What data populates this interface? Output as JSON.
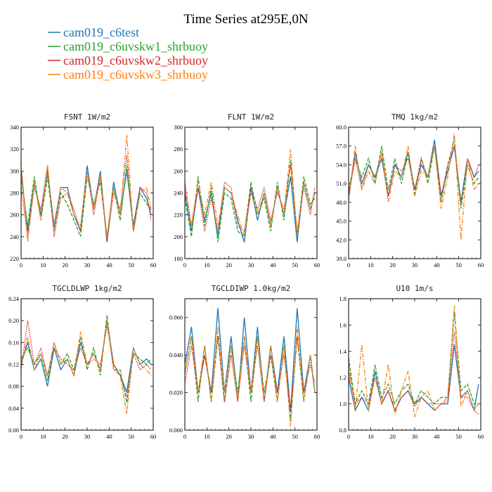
{
  "title": "Time Series at295E,0N",
  "series_styles": [
    {
      "name": "cam019_c6test",
      "color": "#1f77b4",
      "dash": ""
    },
    {
      "name": "cam019_c6uvskw1_shrbuoy",
      "color": "#2ca02c",
      "dash": "5,2"
    },
    {
      "name": "cam019_c6uvskw2_shrbuoy",
      "color": "#d62728",
      "dash": "1.5,1.5"
    },
    {
      "name": "cam019_c6uvskw3_shrbuoy",
      "color": "#ff7f0e",
      "dash": "6,2,1.5,2"
    }
  ],
  "chart_data": [
    {
      "type": "line",
      "title": "FSNT  1W/m2",
      "xlim": [
        0,
        60
      ],
      "ylim": [
        220,
        340
      ],
      "xticks": [
        "0",
        "10",
        "20",
        "30",
        "40",
        "50",
        "60"
      ],
      "yticks": [
        "220",
        "240",
        "260",
        "280",
        "300",
        "320",
        "340"
      ],
      "x": [
        0,
        3,
        6,
        9,
        12,
        15,
        18,
        21,
        24,
        27,
        30,
        33,
        36,
        39,
        42,
        45,
        48,
        51,
        54,
        57,
        59
      ],
      "series": [
        {
          "name": "cam019_c6test",
          "values": [
            300,
            245,
            290,
            260,
            300,
            250,
            285,
            285,
            260,
            245,
            305,
            265,
            300,
            235,
            290,
            260,
            300,
            250,
            285,
            275,
            260
          ]
        },
        {
          "name": "cam019_c6uvskw1_shrbuoy",
          "values": [
            295,
            250,
            295,
            255,
            295,
            245,
            280,
            270,
            255,
            240,
            295,
            270,
            290,
            240,
            285,
            255,
            305,
            245,
            280,
            270,
            265
          ]
        },
        {
          "name": "cam019_c6uvskw2_shrbuoy",
          "values": [
            285,
            240,
            285,
            265,
            305,
            240,
            275,
            280,
            265,
            245,
            300,
            260,
            295,
            235,
            280,
            265,
            315,
            245,
            285,
            280,
            255
          ]
        },
        {
          "name": "cam019_c6uvskw3_shrbuoy",
          "values": [
            308,
            235,
            290,
            255,
            305,
            245,
            285,
            280,
            260,
            250,
            300,
            265,
            295,
            240,
            285,
            260,
            333,
            245,
            280,
            285,
            265
          ]
        }
      ]
    },
    {
      "type": "line",
      "title": "FLNT  1W/m2",
      "xlim": [
        0,
        60
      ],
      "ylim": [
        180,
        300
      ],
      "xticks": [
        "0",
        "10",
        "20",
        "30",
        "40",
        "50",
        "60"
      ],
      "yticks": [
        "180",
        "200",
        "220",
        "240",
        "260",
        "280",
        "300"
      ],
      "x": [
        0,
        3,
        6,
        9,
        12,
        15,
        18,
        21,
        24,
        27,
        30,
        33,
        36,
        39,
        42,
        45,
        48,
        51,
        54,
        57,
        59
      ],
      "series": [
        {
          "name": "cam019_c6test",
          "values": [
            240,
            205,
            245,
            215,
            240,
            200,
            245,
            240,
            215,
            195,
            245,
            215,
            240,
            210,
            245,
            220,
            255,
            195,
            250,
            225,
            240
          ]
        },
        {
          "name": "cam019_c6uvskw1_shrbuoy",
          "values": [
            235,
            200,
            255,
            210,
            245,
            195,
            240,
            235,
            205,
            200,
            250,
            220,
            235,
            205,
            250,
            215,
            270,
            200,
            255,
            230,
            235
          ]
        },
        {
          "name": "cam019_c6uvskw2_shrbuoy",
          "values": [
            250,
            210,
            245,
            205,
            235,
            205,
            250,
            245,
            210,
            205,
            245,
            225,
            245,
            215,
            240,
            225,
            265,
            205,
            245,
            220,
            245
          ]
        },
        {
          "name": "cam019_c6uvskw3_shrbuoy",
          "values": [
            245,
            210,
            250,
            220,
            250,
            210,
            245,
            240,
            220,
            200,
            240,
            220,
            240,
            210,
            245,
            220,
            280,
            200,
            250,
            225,
            240
          ]
        }
      ]
    },
    {
      "type": "line",
      "title": "TMQ  1kg/m2",
      "xlim": [
        0,
        60
      ],
      "ylim": [
        39,
        60
      ],
      "xticks": [
        "0",
        "10",
        "20",
        "30",
        "40",
        "50",
        "60"
      ],
      "yticks": [
        "39.0",
        "42.0",
        "45.0",
        "48.0",
        "51.0",
        "54.0",
        "57.0",
        "60.0"
      ],
      "x": [
        0,
        3,
        6,
        9,
        12,
        15,
        18,
        21,
        24,
        27,
        30,
        33,
        36,
        39,
        42,
        45,
        48,
        51,
        54,
        57,
        59
      ],
      "series": [
        {
          "name": "cam019_c6test",
          "values": [
            49,
            56,
            51,
            54,
            52,
            55,
            49,
            54,
            52,
            56,
            50,
            54,
            52,
            58,
            49,
            53,
            57,
            48,
            55,
            52,
            53
          ]
        },
        {
          "name": "cam019_c6uvskw1_shrbuoy",
          "values": [
            50,
            55,
            52,
            55,
            51,
            57,
            50,
            55,
            51,
            56,
            49,
            55,
            51,
            57,
            48,
            54,
            58,
            47,
            54,
            51,
            52
          ]
        },
        {
          "name": "cam019_c6uvskw2_shrbuoy",
          "values": [
            49,
            55,
            50,
            54,
            52,
            56,
            49,
            54,
            53,
            55,
            50,
            55,
            52,
            57,
            49,
            54,
            57,
            48,
            55,
            52,
            54
          ]
        },
        {
          "name": "cam019_c6uvskw3_shrbuoy",
          "values": [
            48,
            57,
            50,
            53,
            51,
            56,
            48,
            53,
            52,
            57,
            49,
            53,
            52,
            57,
            47,
            52,
            59,
            42,
            55,
            50,
            51
          ]
        }
      ]
    },
    {
      "type": "line",
      "title": "TGCLDLWP  1kg/m2",
      "xlim": [
        0,
        60
      ],
      "ylim": [
        0,
        0.24
      ],
      "xticks": [
        "0",
        "10",
        "20",
        "30",
        "40",
        "50",
        "60"
      ],
      "yticks": [
        "0.00",
        "0.04",
        "0.08",
        "0.12",
        "0.16",
        "0.20",
        "0.24"
      ],
      "x": [
        0,
        3,
        6,
        9,
        12,
        15,
        18,
        21,
        24,
        27,
        30,
        33,
        36,
        39,
        42,
        45,
        48,
        51,
        54,
        57,
        59
      ],
      "series": [
        {
          "name": "cam019_c6test",
          "values": [
            0.12,
            0.16,
            0.11,
            0.13,
            0.08,
            0.15,
            0.11,
            0.13,
            0.1,
            0.16,
            0.12,
            0.14,
            0.11,
            0.2,
            0.12,
            0.1,
            0.07,
            0.15,
            0.12,
            0.13,
            0.12
          ]
        },
        {
          "name": "cam019_c6uvskw1_shrbuoy",
          "values": [
            0.13,
            0.15,
            0.12,
            0.14,
            0.09,
            0.16,
            0.12,
            0.14,
            0.11,
            0.17,
            0.11,
            0.15,
            0.1,
            0.21,
            0.11,
            0.11,
            0.05,
            0.14,
            0.13,
            0.12,
            0.13
          ]
        },
        {
          "name": "cam019_c6uvskw2_shrbuoy",
          "values": [
            0.11,
            0.2,
            0.12,
            0.15,
            0.1,
            0.15,
            0.13,
            0.12,
            0.11,
            0.15,
            0.12,
            0.13,
            0.12,
            0.19,
            0.12,
            0.1,
            0.06,
            0.14,
            0.11,
            0.12,
            0.11
          ]
        },
        {
          "name": "cam019_c6uvskw3_shrbuoy",
          "values": [
            0.12,
            0.17,
            0.11,
            0.14,
            0.1,
            0.16,
            0.12,
            0.13,
            0.1,
            0.18,
            0.12,
            0.14,
            0.11,
            0.2,
            0.11,
            0.1,
            0.03,
            0.15,
            0.12,
            0.11,
            0.1
          ]
        }
      ]
    },
    {
      "type": "line",
      "title": "TGCLDIWP  1.0kg/m2",
      "xlim": [
        0,
        60
      ],
      "ylim": [
        0,
        0.07
      ],
      "xticks": [
        "0",
        "10",
        "20",
        "30",
        "40",
        "50",
        "60"
      ],
      "yticks": [
        "0.000",
        "0.020",
        "0.040",
        "0.060"
      ],
      "x": [
        0,
        3,
        6,
        9,
        12,
        15,
        18,
        21,
        24,
        27,
        30,
        33,
        36,
        39,
        42,
        45,
        48,
        51,
        54,
        57,
        59
      ],
      "series": [
        {
          "name": "cam019_c6test",
          "values": [
            0.035,
            0.055,
            0.02,
            0.04,
            0.02,
            0.065,
            0.02,
            0.05,
            0.015,
            0.06,
            0.02,
            0.055,
            0.015,
            0.045,
            0.02,
            0.05,
            0.01,
            0.065,
            0.02,
            0.04,
            0.02
          ]
        },
        {
          "name": "cam019_c6uvskw1_shrbuoy",
          "values": [
            0.03,
            0.05,
            0.015,
            0.045,
            0.015,
            0.05,
            0.015,
            0.045,
            0.02,
            0.05,
            0.015,
            0.05,
            0.02,
            0.04,
            0.015,
            0.045,
            0.005,
            0.05,
            0.015,
            0.04,
            0.02
          ]
        },
        {
          "name": "cam019_c6uvskw2_shrbuoy",
          "values": [
            0.025,
            0.045,
            0.02,
            0.04,
            0.02,
            0.05,
            0.015,
            0.04,
            0.015,
            0.045,
            0.02,
            0.045,
            0.015,
            0.04,
            0.02,
            0.04,
            0.01,
            0.05,
            0.02,
            0.035,
            0.025
          ]
        },
        {
          "name": "cam019_c6uvskw3_shrbuoy",
          "values": [
            0.03,
            0.05,
            0.02,
            0.045,
            0.015,
            0.055,
            0.02,
            0.045,
            0.015,
            0.05,
            0.02,
            0.05,
            0.015,
            0.045,
            0.015,
            0.045,
            0.002,
            0.055,
            0.015,
            0.04,
            0.02
          ]
        }
      ]
    },
    {
      "type": "line",
      "title": "U10  1m/s",
      "xlim": [
        0,
        60
      ],
      "ylim": [
        0.8,
        1.8
      ],
      "xticks": [
        "0",
        "10",
        "20",
        "30",
        "40",
        "50",
        "60"
      ],
      "yticks": [
        "0.8",
        "1.0",
        "1.2",
        "1.4",
        "1.6",
        "1.8"
      ],
      "x": [
        0,
        3,
        6,
        9,
        12,
        15,
        18,
        21,
        24,
        27,
        30,
        33,
        36,
        39,
        42,
        45,
        48,
        51,
        54,
        57,
        59
      ],
      "series": [
        {
          "name": "cam019_c6test",
          "values": [
            1.2,
            0.95,
            1.05,
            0.95,
            1.25,
            1.0,
            1.1,
            0.95,
            1.05,
            1.1,
            1.0,
            1.05,
            1.0,
            0.95,
            1.0,
            1.0,
            1.45,
            1.05,
            1.1,
            0.95,
            1.15
          ]
        },
        {
          "name": "cam019_c6uvskw1_shrbuoy",
          "values": [
            1.35,
            1.0,
            1.1,
            1.0,
            1.3,
            1.05,
            1.15,
            1.0,
            1.1,
            1.15,
            1.0,
            1.1,
            1.05,
            1.0,
            1.05,
            1.05,
            1.7,
            1.1,
            1.15,
            1.0,
            1.0
          ]
        },
        {
          "name": "cam019_c6uvskw2_shrbuoy",
          "values": [
            1.25,
            1.0,
            1.05,
            1.0,
            1.2,
            1.0,
            1.1,
            0.95,
            1.05,
            1.1,
            0.98,
            1.05,
            1.0,
            1.0,
            1.0,
            1.02,
            1.55,
            1.05,
            1.05,
            0.95,
            0.92
          ]
        },
        {
          "name": "cam019_c6uvskw3_shrbuoy",
          "values": [
            1.3,
            0.95,
            1.45,
            0.95,
            1.2,
            1.0,
            1.3,
            0.92,
            1.1,
            1.25,
            0.9,
            1.05,
            1.1,
            0.95,
            1.0,
            1.05,
            1.75,
            0.98,
            1.1,
            0.95,
            1.0
          ]
        }
      ]
    }
  ]
}
